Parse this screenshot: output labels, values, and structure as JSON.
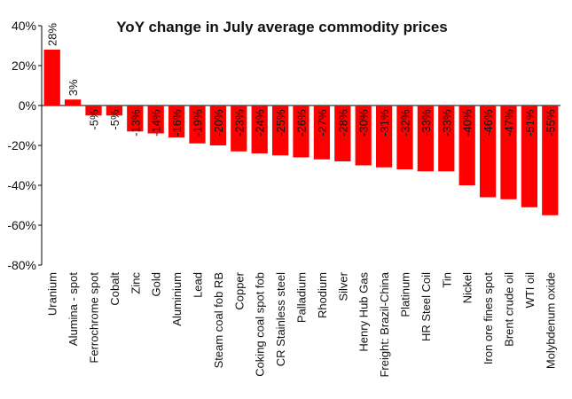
{
  "chart_data": {
    "type": "bar",
    "title": "YoY change in July average commodity prices",
    "xlabel": "",
    "ylabel": "",
    "ylim": [
      -80,
      40
    ],
    "yticks": [
      40,
      20,
      0,
      -20,
      -40,
      -60,
      -80
    ],
    "ytick_labels": [
      "40%",
      "20%",
      "0%",
      "-20%",
      "-40%",
      "-60%",
      "-80%"
    ],
    "grid": false,
    "bar_color": "#ff0000",
    "categories": [
      "Uranium",
      "Alumina - spot",
      "Ferrochrome spot",
      "Cobalt",
      "Zinc",
      "Gold",
      "Aluminium",
      "Lead",
      "Steam coal fob RB",
      "Copper",
      "Coking coal spot fob",
      "CR Stainless steel",
      "Palladium",
      "Rhodium",
      "Silver",
      "Henry Hub Gas",
      "Freight: Brazil-China",
      "Platinum",
      "HR Steel Coil",
      "Tin",
      "Nickel",
      "Iron ore fines spot",
      "Brent crude oil",
      "WTI oil",
      "Molybdenum oxide"
    ],
    "values": [
      28,
      3,
      -5,
      -5,
      -13,
      -14,
      -16,
      -19,
      -20,
      -23,
      -24,
      -25,
      -26,
      -27,
      -28,
      -30,
      -31,
      -32,
      -33,
      -33,
      -40,
      -46,
      -47,
      -51,
      -55
    ],
    "data_labels": [
      "28%",
      "3%",
      "-5%",
      "-5%",
      "-13%",
      "-14%",
      "-16%",
      "-19%",
      "-20%",
      "-23%",
      "-24%",
      "-25%",
      "-26%",
      "-27%",
      "-28%",
      "-30%",
      "-31%",
      "-32%",
      "-33%",
      "-33%",
      "-40%",
      "-46%",
      "-47%",
      "-51%",
      "-55%"
    ]
  }
}
